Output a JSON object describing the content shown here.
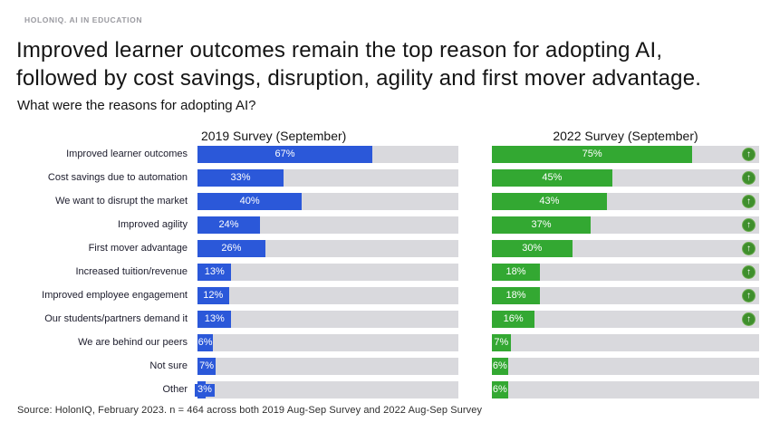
{
  "brand": "HOLONIQ. AI IN EDUCATION",
  "title": "Improved learner outcomes remain the top reason for adopting AI,\nfollowed by cost savings, disruption, agility and first mover advantage.",
  "question": "What were the reasons for adopting AI?",
  "source": "Source: HolonIQ, February 2023. n = 464 across both 2019 Aug-Sep Survey and 2022 Aug-Sep Survey",
  "colors": {
    "bar_2019": "#2b58d9",
    "bar_2022": "#33a832",
    "track": "#d9d9dd",
    "arrow_circle": "#3f8f2d"
  },
  "icons": {
    "increase_arrow": "↑"
  },
  "chart_data": {
    "type": "bar",
    "orientation": "horizontal",
    "xlim": [
      0,
      100
    ],
    "unit": "%",
    "grid": false,
    "categories": [
      "Improved learner outcomes",
      "Cost savings due to automation",
      "We want to disrupt the market",
      "Improved agility",
      "First mover advantage",
      "Increased tuition/revenue",
      "Improved employee engagement",
      "Our students/partners demand it",
      "We are behind our peers",
      "Not sure",
      "Other"
    ],
    "series": [
      {
        "name": "2019 Survey (September)",
        "values": [
          67,
          33,
          40,
          24,
          26,
          13,
          12,
          13,
          6,
          7,
          3
        ]
      },
      {
        "name": "2022 Survey (September)",
        "values": [
          75,
          45,
          43,
          37,
          30,
          18,
          18,
          16,
          7,
          6,
          6
        ]
      }
    ],
    "increase_arrows": [
      true,
      true,
      true,
      true,
      true,
      true,
      true,
      true,
      false,
      false,
      false
    ]
  }
}
